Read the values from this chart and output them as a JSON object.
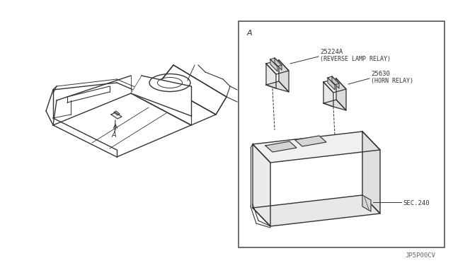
{
  "bg_color": "#ffffff",
  "line_color": "#333333",
  "part1_id": "25224A",
  "part1_label": "(REVERSE LAMP RELAY)",
  "part2_id": "25630",
  "part2_label": "(HORN RELAY)",
  "sec_label": "SEC.240",
  "footer": "JP5P00CV"
}
